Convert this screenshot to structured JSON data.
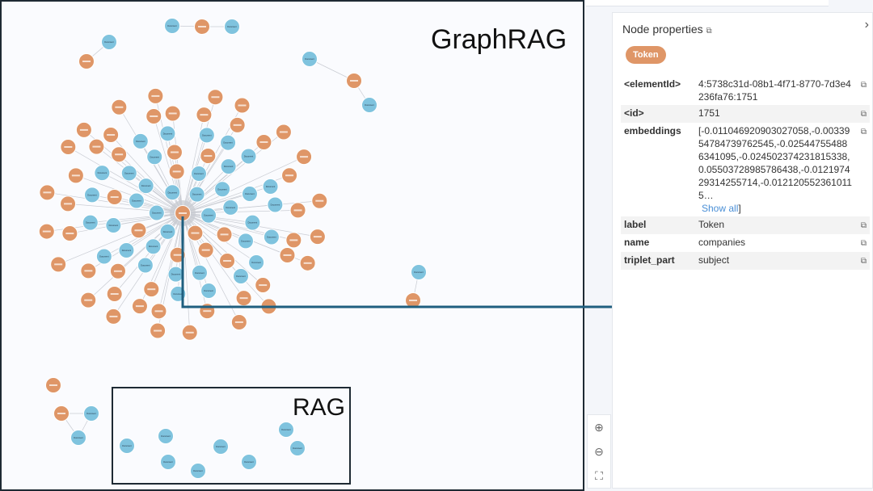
{
  "annotations": {
    "graphrag": "GraphRAG",
    "rag": "RAG"
  },
  "graph": {
    "document_label": "Document",
    "colors": {
      "document": "#7fc3de",
      "token": "#df9667",
      "arrow": "#1f5f7f"
    }
  },
  "panel": {
    "title": "Node properties",
    "badge": "Token",
    "properties": [
      {
        "key": "<elementId>",
        "value": "4:5738c31d-08b1-4f71-8770-7d3e4236fa76:1751"
      },
      {
        "key": "<id>",
        "value": "1751"
      },
      {
        "key": "embeddings",
        "value": "[-0.011046920903027058,-0.0033954784739762545,-0.025447554886341095,-0.024502374231815338,0.05503728985786438,-0.012197429314255714,-0.0121205523610115…"
      },
      {
        "key": "label",
        "value": "Token"
      },
      {
        "key": "name",
        "value": "companies"
      },
      {
        "key": "triplet_part",
        "value": "subject"
      }
    ],
    "show_all": "Show all",
    "show_all_suffix": "]"
  },
  "icons": {
    "copy": "copy-icon",
    "close": "chevron-right-icon",
    "zoom_in": "zoom-in-icon",
    "zoom_out": "zoom-out-icon",
    "fit": "fit-screen-icon"
  }
}
